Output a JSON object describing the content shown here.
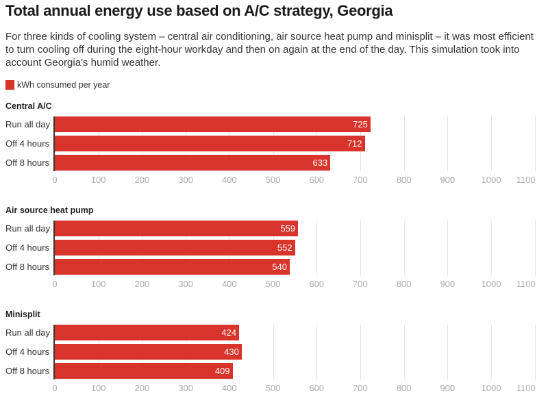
{
  "title": "Total annual energy use based on A/C strategy, Georgia",
  "subtitle": "For three kinds of cooling system – central air conditioning, air source heat pump and minisplit – it was most efficient to turn cooling off during the eight-hour workday and then on again at the end of the day. This simulation took into account Georgia's humid weather.",
  "legend": {
    "label": "kWh consumed per year",
    "color": "#d9342b"
  },
  "chart_data": [
    {
      "type": "bar",
      "orientation": "horizontal",
      "title": "Central A/C",
      "categories": [
        "Run all day",
        "Off 4 hours",
        "Off 8 hours"
      ],
      "values": [
        725,
        712,
        633
      ],
      "xlim": [
        0,
        1100
      ],
      "ticks": [
        "0",
        "100",
        "200",
        "300",
        "400",
        "500",
        "600",
        "700",
        "800",
        "900",
        "1000",
        "1100"
      ],
      "grid": true
    },
    {
      "type": "bar",
      "orientation": "horizontal",
      "title": "Air source heat pump",
      "categories": [
        "Run all day",
        "Off 4 hours",
        "Off 8 hours"
      ],
      "values": [
        559,
        552,
        540
      ],
      "xlim": [
        0,
        1100
      ],
      "ticks": [
        "0",
        "100",
        "200",
        "300",
        "400",
        "500",
        "600",
        "700",
        "800",
        "900",
        "1000",
        "1100"
      ],
      "grid": true
    },
    {
      "type": "bar",
      "orientation": "horizontal",
      "title": "Minisplit",
      "categories": [
        "Run all day",
        "Off 4 hours",
        "Off 8 hours"
      ],
      "values": [
        424,
        430,
        409
      ],
      "xlim": [
        0,
        1100
      ],
      "ticks": [
        "0",
        "100",
        "200",
        "300",
        "400",
        "500",
        "600",
        "700",
        "800",
        "900",
        "1000",
        "1100"
      ],
      "grid": true
    }
  ]
}
